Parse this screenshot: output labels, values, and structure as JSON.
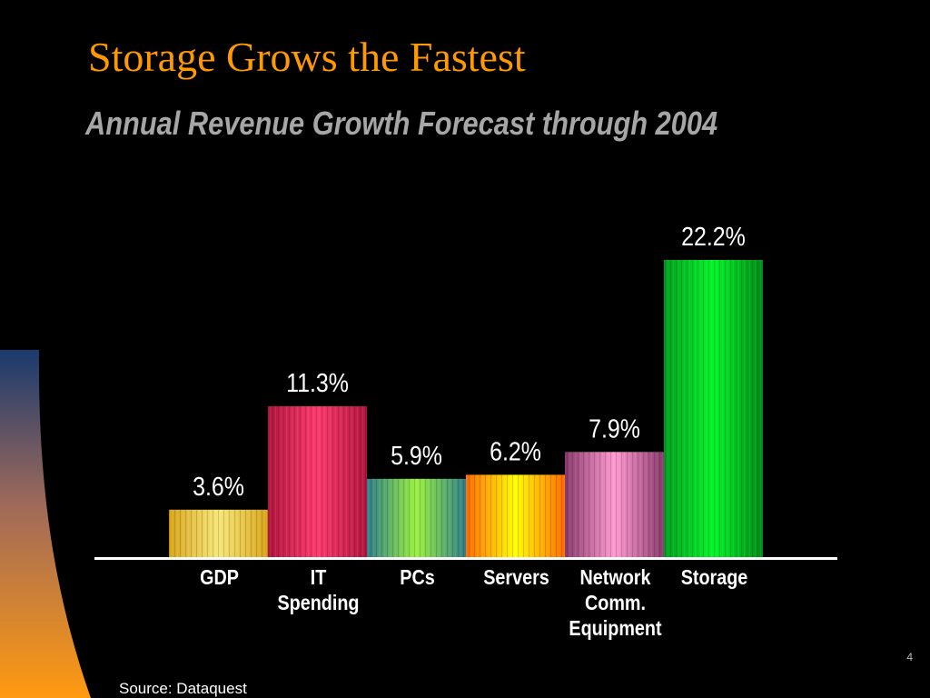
{
  "slide": {
    "title": "Storage Grows the Fastest",
    "subtitle": "Annual Revenue Growth Forecast through 2004",
    "source": "Source: Dataquest",
    "page_number": "4"
  },
  "colors": {
    "background": "#000000",
    "title": "#ff9900",
    "subtitle": "#a6a6a6",
    "text": "#ffffff"
  },
  "chart_data": {
    "type": "bar",
    "title": "",
    "xlabel": "",
    "ylabel": "",
    "categories": [
      [
        "GDP"
      ],
      [
        "IT",
        "Spending"
      ],
      [
        "PCs"
      ],
      [
        "Servers"
      ],
      [
        "Network",
        "Comm.",
        "Equipment"
      ],
      [
        "Storage"
      ]
    ],
    "values": [
      3.6,
      11.3,
      5.9,
      6.2,
      7.9,
      22.2
    ],
    "value_labels": [
      "3.6%",
      "11.3%",
      "5.9%",
      "6.2%",
      "7.9%",
      "22.2%"
    ],
    "ylim": [
      0,
      22.2
    ],
    "grid": false,
    "legend": "none",
    "bar_colors": [
      [
        "#d9a51a",
        "#f7e67a",
        "#d9a51a"
      ],
      [
        "#b0153e",
        "#ff3a6d",
        "#b0153e"
      ],
      [
        "#2f7f8a",
        "#9bf040",
        "#2f7f8a"
      ],
      [
        "#ff6a00",
        "#ffff00",
        "#ff6a00"
      ],
      [
        "#8a3a6e",
        "#ff9ad0",
        "#8a3a6e"
      ],
      [
        "#00a020",
        "#00f52a",
        "#008a18"
      ]
    ]
  }
}
